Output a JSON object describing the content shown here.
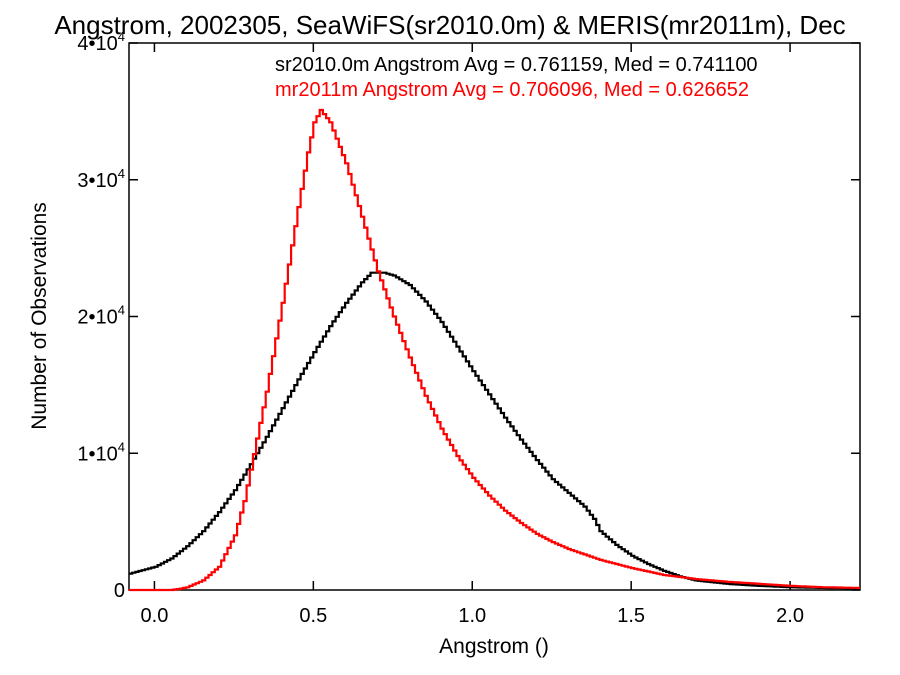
{
  "chart_data": {
    "type": "line",
    "title": "Angstrom, 2002305, SeaWiFS(sr2010.0m) & MERIS(mr2011m), Dec",
    "xlabel": "Angstrom ()",
    "ylabel": "Number of Observations",
    "xlim": [
      -0.08,
      2.22
    ],
    "ylim": [
      0,
      40000
    ],
    "xticks": [
      {
        "value": 0.0,
        "label": "0.0"
      },
      {
        "value": 0.5,
        "label": "0.5"
      },
      {
        "value": 1.0,
        "label": "1.0"
      },
      {
        "value": 1.5,
        "label": "1.5"
      },
      {
        "value": 2.0,
        "label": "2.0"
      }
    ],
    "yticks": [
      {
        "value": 0,
        "base": "0",
        "exp": ""
      },
      {
        "value": 10000,
        "base": "1•10",
        "exp": "4"
      },
      {
        "value": 20000,
        "base": "2•10",
        "exp": "4"
      },
      {
        "value": 30000,
        "base": "3•10",
        "exp": "4"
      },
      {
        "value": 40000,
        "base": "4•10",
        "exp": "4"
      }
    ],
    "grid": false,
    "step": true,
    "series": [
      {
        "label": "sr2010.0m Angstrom Avg = 0.761159, Med = 0.741100",
        "color": "#000000",
        "points": [
          [
            -0.08,
            1200
          ],
          [
            0.0,
            1700
          ],
          [
            0.05,
            2300
          ],
          [
            0.1,
            3200
          ],
          [
            0.15,
            4300
          ],
          [
            0.2,
            5700
          ],
          [
            0.25,
            7300
          ],
          [
            0.3,
            9200
          ],
          [
            0.35,
            11200
          ],
          [
            0.4,
            13300
          ],
          [
            0.45,
            15400
          ],
          [
            0.5,
            17400
          ],
          [
            0.55,
            19300
          ],
          [
            0.6,
            21000
          ],
          [
            0.65,
            22500
          ],
          [
            0.68,
            23200
          ],
          [
            0.72,
            23200
          ],
          [
            0.75,
            23000
          ],
          [
            0.8,
            22300
          ],
          [
            0.85,
            21100
          ],
          [
            0.9,
            19600
          ],
          [
            0.95,
            17800
          ],
          [
            1.0,
            16000
          ],
          [
            1.05,
            14300
          ],
          [
            1.1,
            12600
          ],
          [
            1.15,
            11000
          ],
          [
            1.2,
            9500
          ],
          [
            1.25,
            8100
          ],
          [
            1.3,
            7100
          ],
          [
            1.35,
            6100
          ],
          [
            1.38,
            5200
          ],
          [
            1.4,
            4300
          ],
          [
            1.45,
            3300
          ],
          [
            1.5,
            2500
          ],
          [
            1.55,
            1900
          ],
          [
            1.6,
            1400
          ],
          [
            1.65,
            1000
          ],
          [
            1.7,
            700
          ],
          [
            1.8,
            450
          ],
          [
            1.9,
            300
          ],
          [
            2.0,
            200
          ],
          [
            2.1,
            150
          ],
          [
            2.22,
            100
          ]
        ]
      },
      {
        "label": "mr2011m Angstrom Avg = 0.706096, Med = 0.626652",
        "color": "#ff0000",
        "points": [
          [
            -0.08,
            0
          ],
          [
            0.05,
            0
          ],
          [
            0.08,
            100
          ],
          [
            0.1,
            200
          ],
          [
            0.15,
            700
          ],
          [
            0.2,
            1700
          ],
          [
            0.25,
            4000
          ],
          [
            0.28,
            6500
          ],
          [
            0.3,
            8800
          ],
          [
            0.35,
            14500
          ],
          [
            0.4,
            21000
          ],
          [
            0.45,
            28000
          ],
          [
            0.48,
            32000
          ],
          [
            0.5,
            34200
          ],
          [
            0.52,
            35100
          ],
          [
            0.55,
            34200
          ],
          [
            0.6,
            31200
          ],
          [
            0.65,
            27300
          ],
          [
            0.7,
            23300
          ],
          [
            0.75,
            20000
          ],
          [
            0.8,
            17000
          ],
          [
            0.85,
            14200
          ],
          [
            0.9,
            11800
          ],
          [
            0.95,
            9800
          ],
          [
            1.0,
            8200
          ],
          [
            1.05,
            6900
          ],
          [
            1.1,
            5800
          ],
          [
            1.15,
            4900
          ],
          [
            1.2,
            4100
          ],
          [
            1.25,
            3500
          ],
          [
            1.3,
            3000
          ],
          [
            1.35,
            2600
          ],
          [
            1.4,
            2200
          ],
          [
            1.5,
            1600
          ],
          [
            1.6,
            1100
          ],
          [
            1.7,
            800
          ],
          [
            1.8,
            600
          ],
          [
            1.9,
            450
          ],
          [
            2.0,
            300
          ],
          [
            2.1,
            200
          ],
          [
            2.22,
            150
          ]
        ]
      }
    ]
  }
}
